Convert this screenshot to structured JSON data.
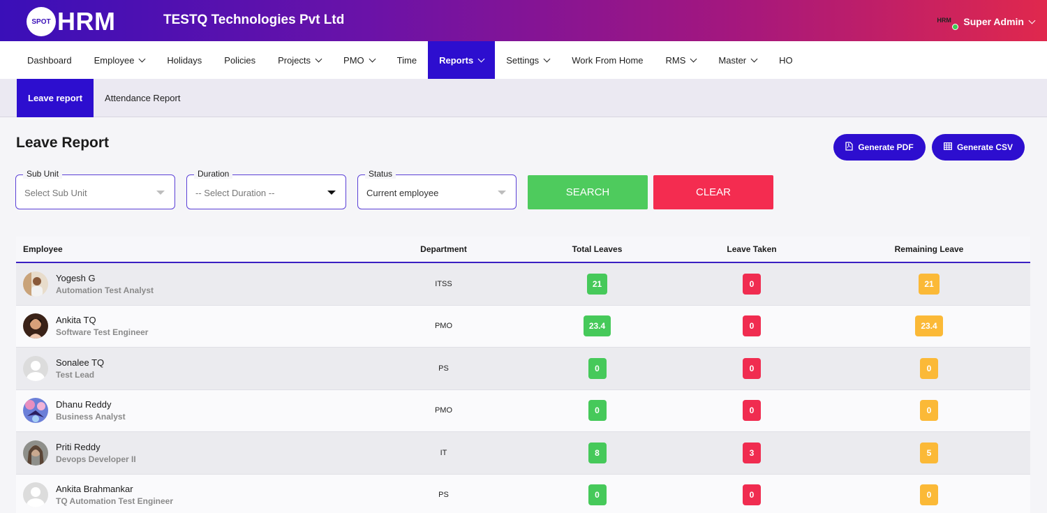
{
  "header": {
    "logo_badge": "SPOT",
    "logo_text": "HRM",
    "company": "TESTQ Technologies Pvt Ltd",
    "user_avatar_text": "HRM",
    "user_name": "Super Admin"
  },
  "nav": {
    "items": [
      {
        "label": "Dashboard",
        "dropdown": false,
        "active": false
      },
      {
        "label": "Employee",
        "dropdown": true,
        "active": false
      },
      {
        "label": "Holidays",
        "dropdown": false,
        "active": false
      },
      {
        "label": "Policies",
        "dropdown": false,
        "active": false
      },
      {
        "label": "Projects",
        "dropdown": true,
        "active": false
      },
      {
        "label": "PMO",
        "dropdown": true,
        "active": false
      },
      {
        "label": "Time",
        "dropdown": false,
        "active": false
      },
      {
        "label": "Reports",
        "dropdown": true,
        "active": true
      },
      {
        "label": "Settings",
        "dropdown": true,
        "active": false
      },
      {
        "label": "Work From Home",
        "dropdown": false,
        "active": false
      },
      {
        "label": "RMS",
        "dropdown": true,
        "active": false
      },
      {
        "label": "Master",
        "dropdown": true,
        "active": false
      },
      {
        "label": "HO",
        "dropdown": false,
        "active": false
      }
    ]
  },
  "subnav": {
    "items": [
      {
        "label": "Leave report",
        "active": true
      },
      {
        "label": "Attendance Report",
        "active": false
      }
    ]
  },
  "page": {
    "title": "Leave Report",
    "generate_pdf": "Generate PDF",
    "generate_csv": "Generate CSV"
  },
  "filters": {
    "sub_unit": {
      "label": "Sub Unit",
      "placeholder": "Select Sub Unit"
    },
    "duration": {
      "label": "Duration",
      "value": "-- Select Duration --"
    },
    "status": {
      "label": "Status",
      "value": "Current employee"
    },
    "search_label": "SEARCH",
    "clear_label": "CLEAR"
  },
  "colors": {
    "primary": "#2d0ecf",
    "search": "#4ecb5d",
    "clear": "#f42c50",
    "badge_green": "#46c95a",
    "badge_red": "#f02c50",
    "badge_yellow": "#fbb937"
  },
  "table": {
    "headers": {
      "employee": "Employee",
      "department": "Department",
      "total": "Total Leaves",
      "taken": "Leave Taken",
      "remaining": "Remaining Leave"
    },
    "rows": [
      {
        "name": "Yogesh G",
        "role": "Automation Test Analyst",
        "department": "ITSS",
        "total": "21",
        "taken": "0",
        "remaining": "21",
        "avatar": "photo-man-icon"
      },
      {
        "name": "Ankita TQ",
        "role": "Software Test Engineer",
        "department": "PMO",
        "total": "23.4",
        "taken": "0",
        "remaining": "23.4",
        "avatar": "photo-woman-icon"
      },
      {
        "name": "Sonalee TQ",
        "role": "Test Lead",
        "department": "PS",
        "total": "0",
        "taken": "0",
        "remaining": "0",
        "avatar": "default-user-icon"
      },
      {
        "name": "Dhanu Reddy",
        "role": "Business Analyst",
        "department": "PMO",
        "total": "0",
        "taken": "0",
        "remaining": "0",
        "avatar": "photo-butterfly-icon"
      },
      {
        "name": "Priti Reddy",
        "role": "Devops Developer II",
        "department": "IT",
        "total": "8",
        "taken": "3",
        "remaining": "5",
        "avatar": "photo-woman2-icon"
      },
      {
        "name": "Ankita Brahmankar",
        "role": "TQ Automation Test Engineer",
        "department": "PS",
        "total": "0",
        "taken": "0",
        "remaining": "0",
        "avatar": "default-user-icon"
      }
    ]
  }
}
